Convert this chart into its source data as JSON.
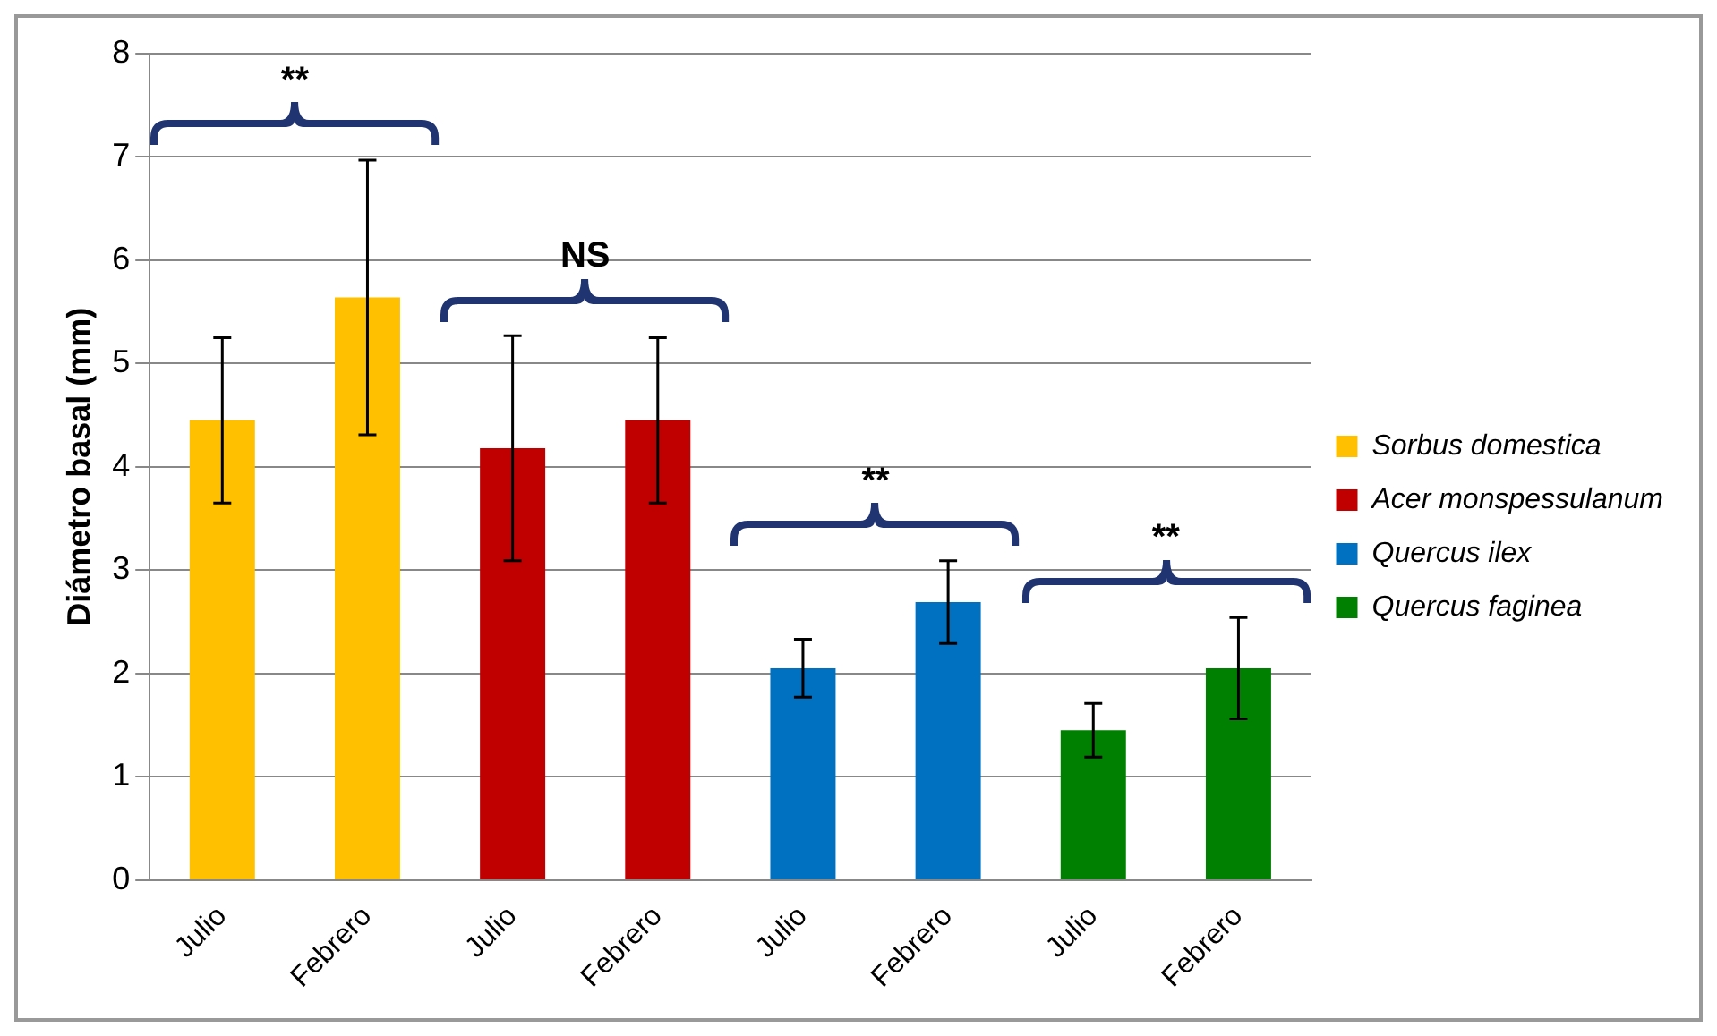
{
  "chart_data": {
    "type": "bar",
    "ylabel": "Diámetro basal (mm)",
    "categories": [
      "Julio",
      "Febrero",
      "Julio",
      "Febrero",
      "Julio",
      "Febrero",
      "Julio",
      "Febrero"
    ],
    "series": [
      {
        "name": "Sorbus domestica",
        "color": "#ffc000",
        "values": [
          4.45,
          5.64,
          null,
          null,
          null,
          null,
          null,
          null
        ],
        "errors": [
          0.8,
          1.33,
          null,
          null,
          null,
          null,
          null,
          null
        ]
      },
      {
        "name": "Acer monspessulanum",
        "color": "#c00000",
        "values": [
          null,
          null,
          4.18,
          4.45,
          null,
          null,
          null,
          null
        ],
        "errors": [
          null,
          null,
          1.09,
          0.8,
          null,
          null,
          null,
          null
        ]
      },
      {
        "name": "Quercus ilex",
        "color": "#0070c0",
        "values": [
          null,
          null,
          null,
          null,
          2.05,
          2.69,
          null,
          null
        ],
        "errors": [
          null,
          null,
          null,
          null,
          0.28,
          0.4,
          null,
          null
        ]
      },
      {
        "name": "Quercus faginea",
        "color": "#008000",
        "values": [
          null,
          null,
          null,
          null,
          null,
          null,
          1.45,
          2.05
        ],
        "errors": [
          null,
          null,
          null,
          null,
          null,
          null,
          0.26,
          0.49
        ]
      }
    ],
    "annotations": [
      "**",
      "NS",
      "**",
      "**"
    ],
    "ylim": [
      0,
      8
    ],
    "yticks": [
      0,
      1,
      2,
      3,
      4,
      5,
      6,
      7,
      8
    ],
    "grid": "y",
    "legend": "right"
  }
}
